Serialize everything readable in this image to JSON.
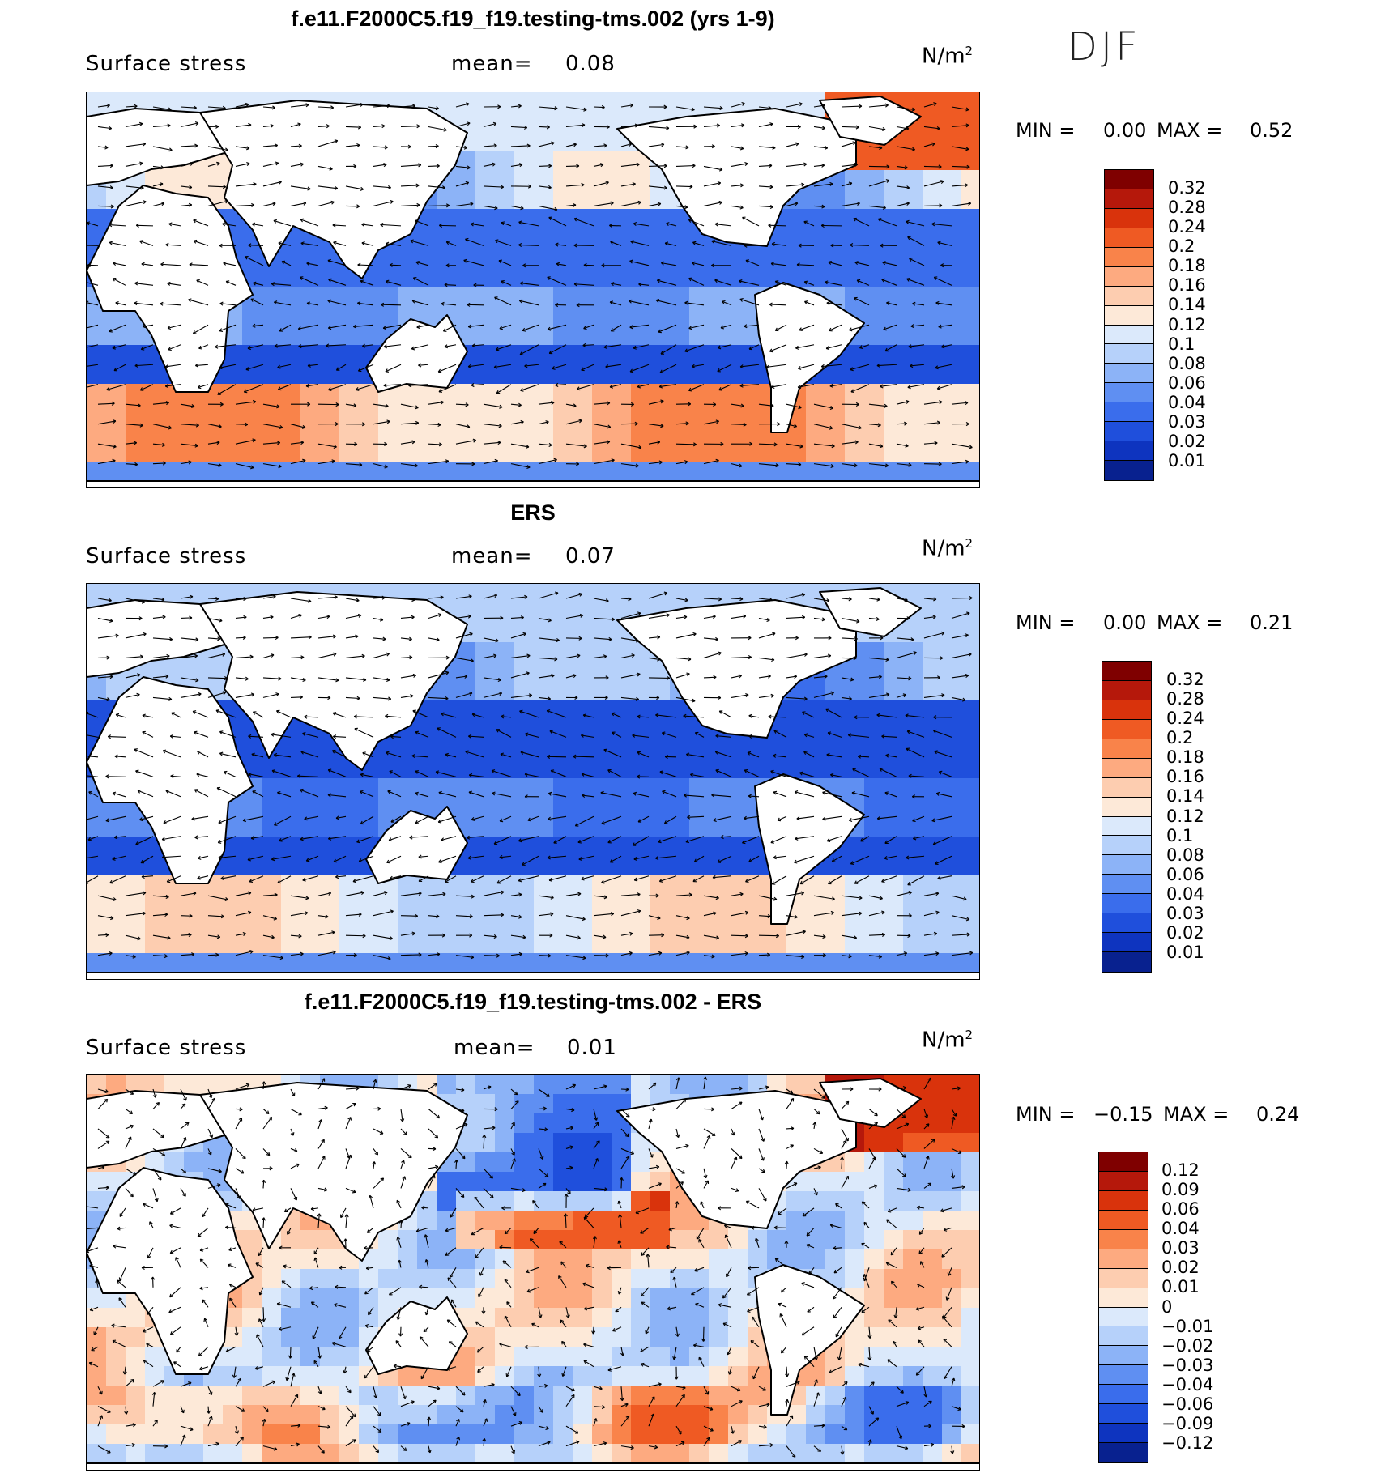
{
  "season": "DJF",
  "panels": [
    {
      "title": "f.e11.F2000C5.f19_f19.testing-tms.002 (yrs 1-9)",
      "variable": "Surface stress",
      "mean_label": "mean=",
      "mean_value": "0.08",
      "units_base": "N/m",
      "units_exp": "2",
      "min_label": "MIN =",
      "min_value": "0.00",
      "max_label": "MAX =",
      "max_value": "0.52",
      "colorbar_labels": [
        "0.32",
        "0.28",
        "0.24",
        "0.2",
        "0.18",
        "0.16",
        "0.14",
        "0.12",
        "0.1",
        "0.08",
        "0.06",
        "0.04",
        "0.03",
        "0.02",
        "0.01"
      ],
      "colorbar_colors": [
        "#7f0000",
        "#b5180b",
        "#d9330c",
        "#ef5a23",
        "#f9834a",
        "#fdaa80",
        "#fdcdb0",
        "#fde9d8",
        "#dbe9fb",
        "#b6d1fa",
        "#8cb3f7",
        "#5f8ff2",
        "#3a6dec",
        "#1f4fdc",
        "#0e34bf",
        "#08218f"
      ]
    },
    {
      "title": "ERS",
      "variable": "Surface stress",
      "mean_label": "mean=",
      "mean_value": "0.07",
      "units_base": "N/m",
      "units_exp": "2",
      "min_label": "MIN =",
      "min_value": "0.00",
      "max_label": "MAX =",
      "max_value": "0.21",
      "colorbar_labels": [
        "0.32",
        "0.28",
        "0.24",
        "0.2",
        "0.18",
        "0.16",
        "0.14",
        "0.12",
        "0.1",
        "0.08",
        "0.06",
        "0.04",
        "0.03",
        "0.02",
        "0.01"
      ],
      "colorbar_colors": [
        "#7f0000",
        "#b5180b",
        "#d9330c",
        "#ef5a23",
        "#f9834a",
        "#fdaa80",
        "#fdcdb0",
        "#fde9d8",
        "#dbe9fb",
        "#b6d1fa",
        "#8cb3f7",
        "#5f8ff2",
        "#3a6dec",
        "#1f4fdc",
        "#0e34bf",
        "#08218f"
      ]
    },
    {
      "title": "f.e11.F2000C5.f19_f19.testing-tms.002 - ERS",
      "variable": "Surface stress",
      "mean_label": "mean=",
      "mean_value": "0.01",
      "units_base": "N/m",
      "units_exp": "2",
      "min_label": "MIN =",
      "min_value": "−0.15",
      "max_label": "MAX =",
      "max_value": "0.24",
      "colorbar_labels": [
        "0.12",
        "0.09",
        "0.06",
        "0.04",
        "0.03",
        "0.02",
        "0.01",
        "0",
        "−0.01",
        "−0.02",
        "−0.03",
        "−0.04",
        "−0.06",
        "−0.09",
        "−0.12"
      ],
      "colorbar_colors": [
        "#7f0000",
        "#b5180b",
        "#d9330c",
        "#ef5a23",
        "#f9834a",
        "#fdaa80",
        "#fdcdb0",
        "#fde9d8",
        "#dbe9fb",
        "#b6d1fa",
        "#8cb3f7",
        "#5f8ff2",
        "#3a6dec",
        "#1f4fdc",
        "#0e34bf",
        "#08218f"
      ]
    }
  ],
  "chart_data": [
    {
      "type": "heatmap",
      "title": "f.e11.F2000C5.f19_f19.testing-tms.002 (yrs 1-9)",
      "variable": "Surface stress",
      "units": "N/m2",
      "mean": 0.08,
      "min": 0.0,
      "max": 0.52,
      "levels": [
        0.01,
        0.02,
        0.03,
        0.04,
        0.06,
        0.08,
        0.1,
        0.12,
        0.14,
        0.16,
        0.18,
        0.2,
        0.24,
        0.28,
        0.32
      ],
      "overlay": "surface stress vectors"
    },
    {
      "type": "heatmap",
      "title": "ERS",
      "variable": "Surface stress",
      "units": "N/m2",
      "mean": 0.07,
      "min": 0.0,
      "max": 0.21,
      "levels": [
        0.01,
        0.02,
        0.03,
        0.04,
        0.06,
        0.08,
        0.1,
        0.12,
        0.14,
        0.16,
        0.18,
        0.2,
        0.24,
        0.28,
        0.32
      ],
      "overlay": "surface stress vectors"
    },
    {
      "type": "heatmap",
      "title": "f.e11.F2000C5.f19_f19.testing-tms.002 - ERS",
      "variable": "Surface stress",
      "units": "N/m2",
      "mean": 0.01,
      "min": -0.15,
      "max": 0.24,
      "levels": [
        -0.12,
        -0.09,
        -0.06,
        -0.04,
        -0.03,
        -0.02,
        -0.01,
        0,
        0.01,
        0.02,
        0.03,
        0.04,
        0.06,
        0.09,
        0.12
      ],
      "overlay": "surface stress difference vectors"
    }
  ]
}
